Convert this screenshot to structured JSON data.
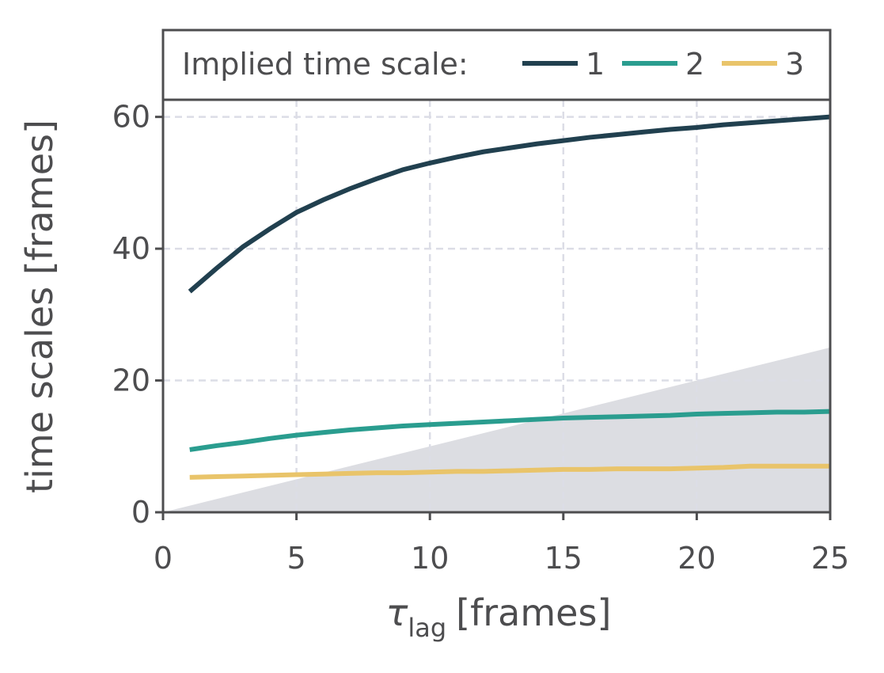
{
  "chart_data": {
    "type": "line",
    "xlabel": {
      "symbol": "τ",
      "subscript": "lag",
      "unit": "[frames]"
    },
    "ylabel": "time scales [frames]",
    "legend_title": "Implied time scale:",
    "x": [
      1,
      2,
      3,
      4,
      5,
      6,
      7,
      8,
      9,
      10,
      11,
      12,
      13,
      14,
      15,
      16,
      17,
      18,
      19,
      20,
      21,
      22,
      23,
      24,
      25
    ],
    "series": [
      {
        "name": "1",
        "color": "#21404f",
        "values": [
          33.5,
          37,
          40.3,
          43,
          45.5,
          47.4,
          49.1,
          50.6,
          52,
          53,
          53.9,
          54.7,
          55.3,
          55.9,
          56.4,
          56.9,
          57.3,
          57.7,
          58.1,
          58.4,
          58.8,
          59.1,
          59.4,
          59.7,
          60
        ]
      },
      {
        "name": "2",
        "color": "#2a9d8f",
        "values": [
          9.5,
          10.1,
          10.6,
          11.2,
          11.7,
          12.1,
          12.5,
          12.8,
          13.1,
          13.3,
          13.5,
          13.7,
          13.9,
          14.1,
          14.3,
          14.4,
          14.5,
          14.6,
          14.7,
          14.9,
          15,
          15.1,
          15.2,
          15.2,
          15.3
        ]
      },
      {
        "name": "3",
        "color": "#e9c46a",
        "values": [
          5.3,
          5.4,
          5.5,
          5.6,
          5.7,
          5.8,
          5.9,
          6,
          6,
          6.1,
          6.2,
          6.2,
          6.3,
          6.4,
          6.5,
          6.5,
          6.6,
          6.6,
          6.6,
          6.7,
          6.8,
          7,
          7,
          7,
          7
        ]
      }
    ],
    "shaded": {
      "x": [
        0,
        25
      ],
      "values": [
        0,
        25
      ],
      "color": "#dcdde2"
    },
    "xlim": [
      0,
      25
    ],
    "xticks": [
      0,
      5,
      10,
      15,
      20,
      25
    ],
    "ylim": [
      0,
      62.6
    ],
    "yticks": [
      0,
      20,
      40,
      60
    ],
    "grid": true
  }
}
